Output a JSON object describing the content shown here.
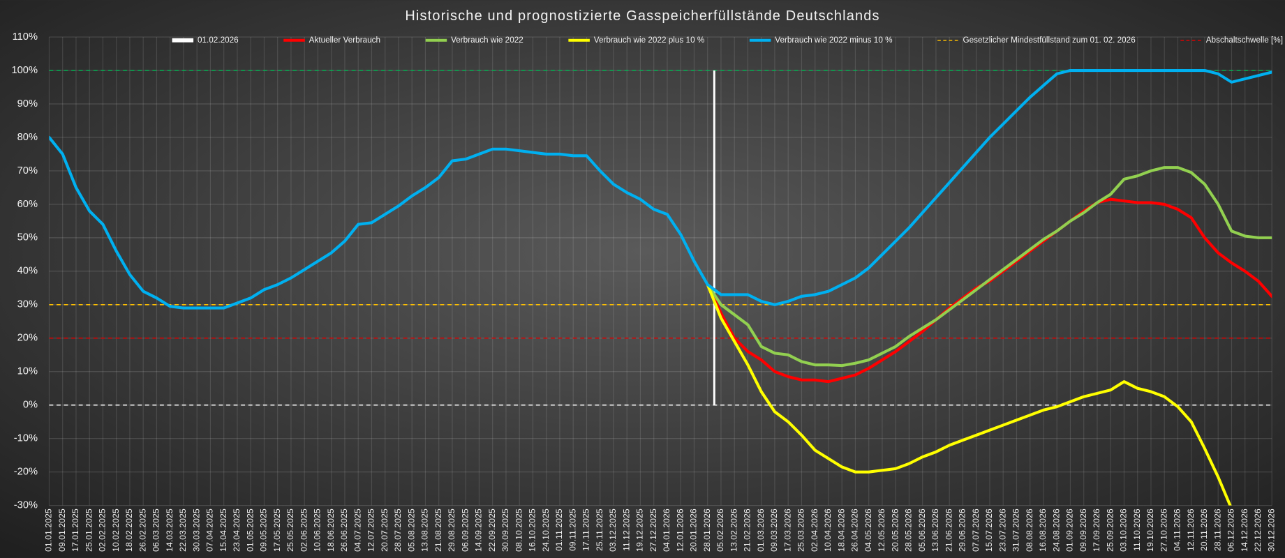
{
  "chart_data": {
    "type": "line",
    "title": "Historische und prognostizierte Gasspeicherfüllstände Deutschlands",
    "categories": [
      "01.01.2025",
      "09.01.2025",
      "17.01.2025",
      "25.01.2025",
      "02.02.2025",
      "10.02.2025",
      "18.02.2025",
      "26.02.2025",
      "06.03.2025",
      "14.03.2025",
      "22.03.2025",
      "30.03.2025",
      "07.04.2025",
      "15.04.2025",
      "23.04.2025",
      "01.05.2025",
      "09.05.2025",
      "17.05.2025",
      "25.05.2025",
      "02.06.2025",
      "10.06.2025",
      "18.06.2025",
      "26.06.2025",
      "04.07.2025",
      "12.07.2025",
      "20.07.2025",
      "28.07.2025",
      "05.08.2025",
      "13.08.2025",
      "21.08.2025",
      "29.08.2025",
      "06.09.2025",
      "14.09.2025",
      "22.09.2025",
      "30.09.2025",
      "08.10.2025",
      "16.10.2025",
      "24.10.2025",
      "01.11.2025",
      "09.11.2025",
      "17.11.2025",
      "25.11.2025",
      "03.12.2025",
      "11.12.2025",
      "19.12.2025",
      "27.12.2025",
      "04.01.2026",
      "12.01.2026",
      "20.01.2026",
      "28.01.2026",
      "05.02.2026",
      "13.02.2026",
      "21.02.2026",
      "01.03.2026",
      "09.03.2026",
      "17.03.2026",
      "25.03.2026",
      "02.04.2026",
      "10.04.2026",
      "18.04.2026",
      "26.04.2026",
      "04.05.2026",
      "12.05.2026",
      "20.05.2026",
      "28.05.2026",
      "05.06.2026",
      "13.06.2026",
      "21.06.2026",
      "29.06.2026",
      "07.07.2026",
      "15.07.2026",
      "23.07.2026",
      "31.07.2026",
      "08.08.2026",
      "16.08.2026",
      "24.08.2026",
      "01.09.2026",
      "09.09.2026",
      "17.09.2026",
      "25.09.2026",
      "03.10.2026",
      "11.10.2026",
      "19.10.2026",
      "27.10.2026",
      "04.11.2026",
      "12.11.2026",
      "20.11.2026",
      "28.11.2026",
      "06.12.2026",
      "14.12.2026",
      "22.12.2026",
      "30.12.2026"
    ],
    "series": [
      {
        "name": "Aktueller Verbrauch",
        "color": "#ff0000",
        "values": [
          null,
          null,
          null,
          null,
          null,
          null,
          null,
          null,
          null,
          null,
          null,
          null,
          null,
          null,
          null,
          null,
          null,
          null,
          null,
          null,
          null,
          null,
          null,
          null,
          null,
          null,
          null,
          null,
          null,
          null,
          null,
          null,
          null,
          null,
          null,
          null,
          null,
          null,
          null,
          null,
          null,
          null,
          null,
          null,
          null,
          null,
          null,
          null,
          null,
          36,
          27.5,
          20,
          16,
          13.5,
          10,
          8.5,
          7.5,
          7.5,
          7,
          8,
          9,
          11,
          13.5,
          16,
          19,
          22,
          25.5,
          29,
          32,
          35,
          37,
          40,
          43,
          46,
          49,
          52,
          55,
          58,
          60.5,
          61.5,
          61,
          60.5,
          60.5,
          60,
          58.5,
          56,
          50,
          45.5,
          42.5,
          40,
          37,
          32.5
        ]
      },
      {
        "name": "Verbrauch wie 2022",
        "color": "#92d050",
        "values": [
          null,
          null,
          null,
          null,
          null,
          null,
          null,
          null,
          null,
          null,
          null,
          null,
          null,
          null,
          null,
          null,
          null,
          null,
          null,
          null,
          null,
          null,
          null,
          null,
          null,
          null,
          null,
          null,
          null,
          null,
          null,
          null,
          null,
          null,
          null,
          null,
          null,
          null,
          null,
          null,
          null,
          null,
          null,
          null,
          null,
          null,
          null,
          null,
          null,
          36,
          30,
          27,
          24,
          17.5,
          15.5,
          15,
          13,
          12,
          12,
          11.8,
          12.5,
          13.5,
          15.5,
          17.5,
          20.5,
          23,
          25.5,
          28.5,
          31.5,
          34.5,
          37.5,
          40.5,
          43.5,
          46.5,
          49.5,
          52,
          55,
          57.5,
          60.5,
          63,
          67.5,
          68.5,
          70,
          71,
          71,
          69.5,
          66,
          60,
          52,
          50.5,
          50,
          50
        ]
      },
      {
        "name": "Verbrauch wie 2022 plus 10 %",
        "color": "#ffff00",
        "values": [
          null,
          null,
          null,
          null,
          null,
          null,
          null,
          null,
          null,
          null,
          null,
          null,
          null,
          null,
          null,
          null,
          null,
          null,
          null,
          null,
          null,
          null,
          null,
          null,
          null,
          null,
          null,
          null,
          null,
          null,
          null,
          null,
          null,
          null,
          null,
          null,
          null,
          null,
          null,
          null,
          null,
          null,
          null,
          null,
          null,
          null,
          null,
          null,
          null,
          36,
          26,
          19,
          12,
          4,
          -2,
          -5,
          -9,
          -13.5,
          -16,
          -18.5,
          -20,
          -20,
          -19.5,
          -19,
          -17.5,
          -15.5,
          -14,
          -12,
          -10.5,
          -9,
          -7.5,
          -6,
          -4.5,
          -3,
          -1.5,
          -0.5,
          1,
          2.5,
          3.5,
          4.5,
          7,
          5,
          4,
          2.5,
          -0.5,
          -5,
          -13,
          -21.5,
          -31,
          null,
          null,
          null
        ]
      },
      {
        "name": "Verbrauch wie 2022 minus 10 %",
        "color": "#00b0f0",
        "values": [
          80,
          75,
          65,
          58,
          54,
          46,
          39,
          34,
          32,
          29.5,
          29,
          29,
          29,
          29,
          30.5,
          32,
          34.5,
          36,
          38,
          40.5,
          43,
          45.5,
          49,
          54,
          54.5,
          57,
          59.5,
          62.5,
          65,
          68,
          73,
          73.5,
          75,
          76.5,
          76.5,
          76,
          75.5,
          75,
          75,
          74.5,
          74.5,
          70,
          66,
          63.5,
          61.5,
          58.5,
          57,
          51,
          43,
          36,
          33,
          33,
          33,
          31,
          30,
          31,
          32.5,
          33,
          34,
          36,
          38,
          41,
          45,
          49,
          53,
          57.5,
          62,
          66.5,
          71,
          75.5,
          80,
          84,
          88,
          92,
          95.5,
          99,
          100,
          100,
          100,
          100,
          100,
          100,
          100,
          100,
          100,
          100,
          100,
          99,
          96.5,
          97.5,
          98.5,
          99.5
        ]
      }
    ],
    "ylim": [
      -30,
      110
    ],
    "yticks": [
      {
        "value": -30,
        "label": "-30%"
      },
      {
        "value": -20,
        "label": "-20%"
      },
      {
        "value": -10,
        "label": "-10%"
      },
      {
        "value": 0,
        "label": "0%"
      },
      {
        "value": 10,
        "label": "10%"
      },
      {
        "value": 20,
        "label": "20%"
      },
      {
        "value": 30,
        "label": "30%"
      },
      {
        "value": 40,
        "label": "40%"
      },
      {
        "value": 50,
        "label": "50%"
      },
      {
        "value": 60,
        "label": "60%"
      },
      {
        "value": 70,
        "label": "70%"
      },
      {
        "value": 80,
        "label": "80%"
      },
      {
        "value": 90,
        "label": "90%"
      },
      {
        "value": 100,
        "label": "100%"
      },
      {
        "value": 110,
        "label": "110%"
      }
    ],
    "grid": true,
    "vertical_line": {
      "name": "01.02.2026",
      "color": "#ffffff",
      "range": [
        0,
        100
      ]
    },
    "reference_lines": [
      {
        "value": 100,
        "color": "#00b050"
      },
      {
        "value": 30,
        "color": "#ffc000",
        "name": "Gesetzlicher Mindestfüllstand zum 01. 02. 2026"
      },
      {
        "value": 20,
        "color": "#e00000",
        "name": "Abschaltschwelle [%]"
      },
      {
        "value": 0,
        "color": "#ffffff"
      }
    ],
    "legend": "top"
  }
}
